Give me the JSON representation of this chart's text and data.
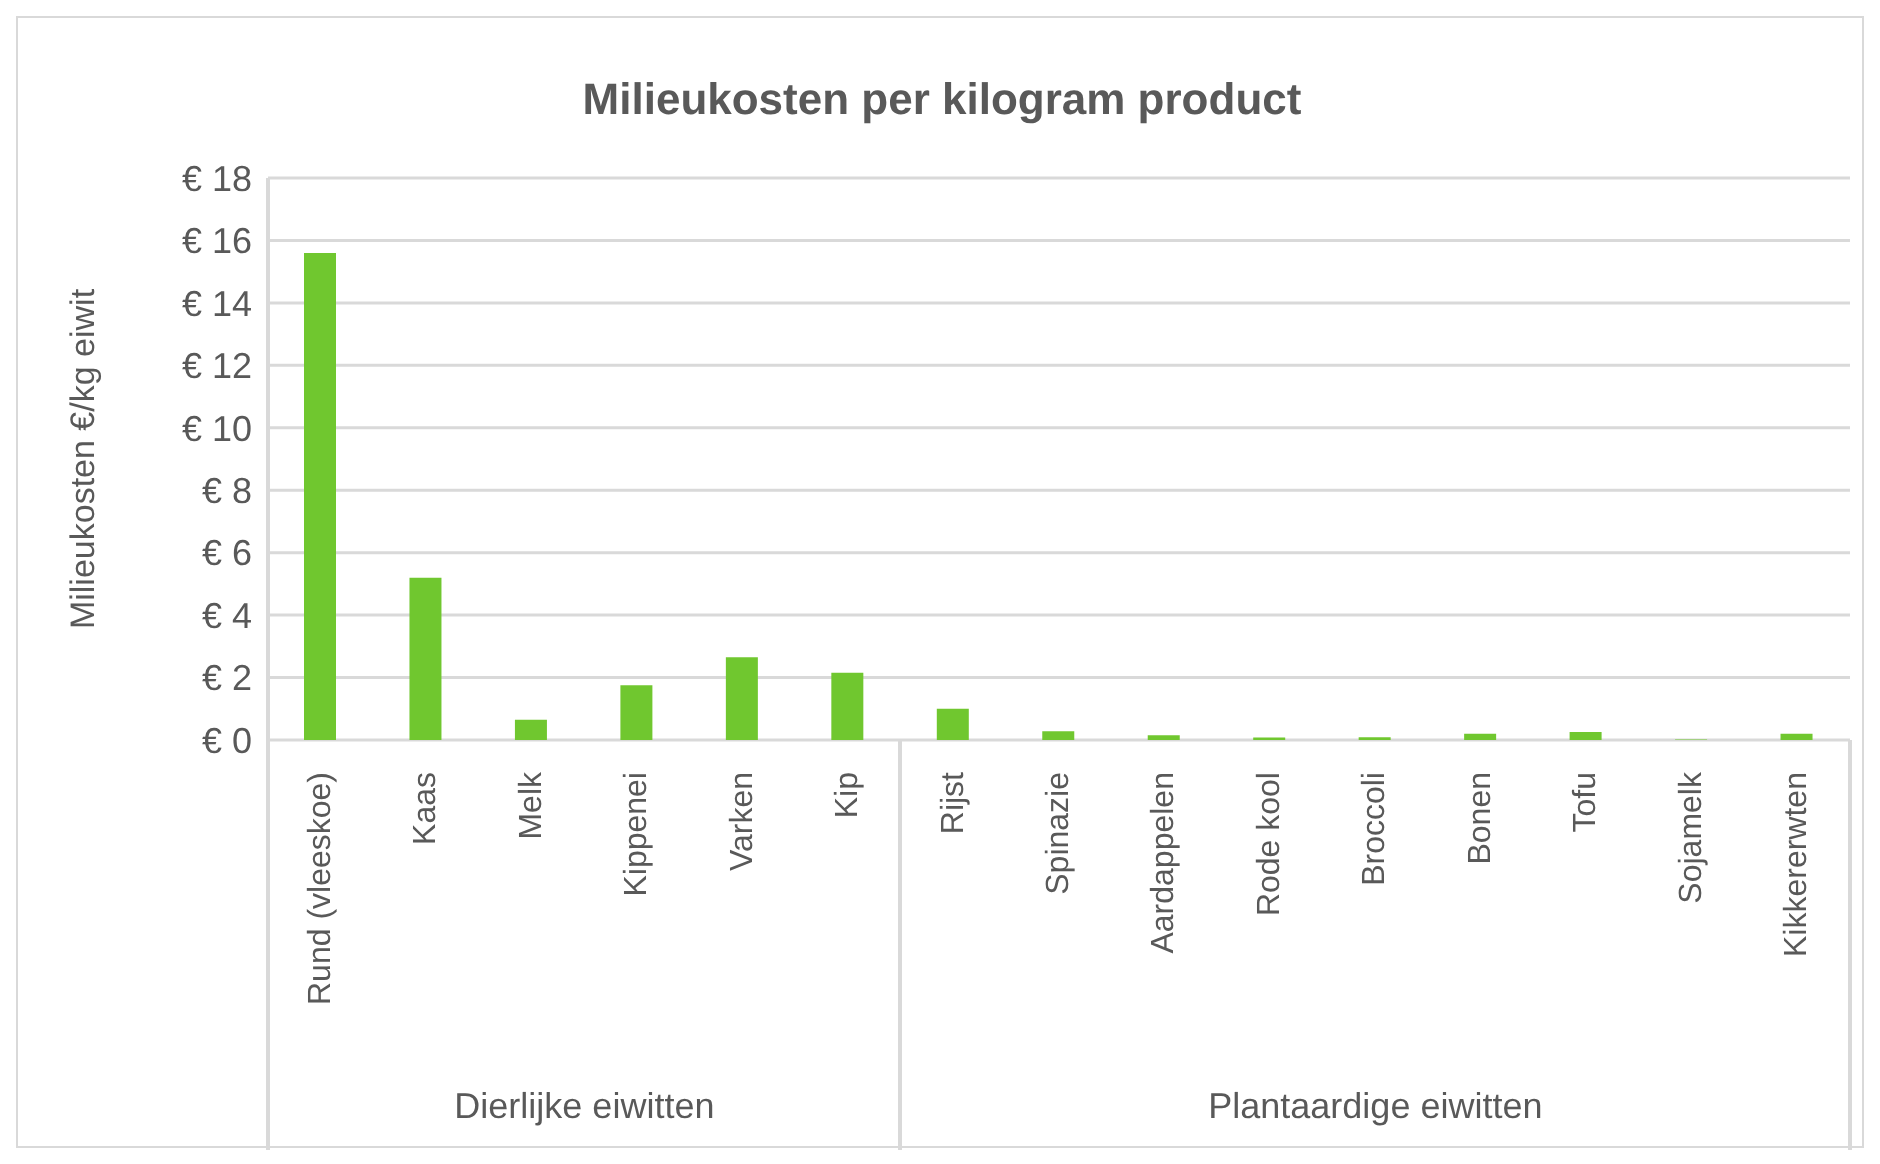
{
  "chart_data": {
    "type": "bar",
    "title": "Milieukosten per kilogram product",
    "ylabel": "Milieukosten €/kg eiwit",
    "categories": [
      "Rund (vleeskoe)",
      "Kaas",
      "Melk",
      "Kippenei",
      "Varken",
      "Kip",
      "Rijst",
      "Spinazie",
      "Aardappelen",
      "Rode kool",
      "Broccoli",
      "Bonen",
      "Tofu",
      "Sojamelk",
      "Kikkererwten"
    ],
    "values": [
      15.6,
      5.2,
      0.65,
      1.75,
      2.65,
      2.15,
      1.0,
      0.28,
      0.15,
      0.08,
      0.09,
      0.2,
      0.26,
      0.02,
      0.2
    ],
    "color": "#70c72f",
    "ylim": [
      0,
      18
    ],
    "yticks": [
      {
        "value": 0,
        "label": "€ 0"
      },
      {
        "value": 2,
        "label": "€ 2"
      },
      {
        "value": 4,
        "label": "€ 4"
      },
      {
        "value": 6,
        "label": "€ 6"
      },
      {
        "value": 8,
        "label": "€ 8"
      },
      {
        "value": 10,
        "label": "€ 10"
      },
      {
        "value": 12,
        "label": "€ 12"
      },
      {
        "value": 14,
        "label": "€ 14"
      },
      {
        "value": 16,
        "label": "€ 16"
      },
      {
        "value": 18,
        "label": "€ 18"
      }
    ],
    "grid": "y",
    "annotations": [
      "Dierlijke eiwitten",
      "Plantaardige eiwitten"
    ],
    "legend": false
  }
}
